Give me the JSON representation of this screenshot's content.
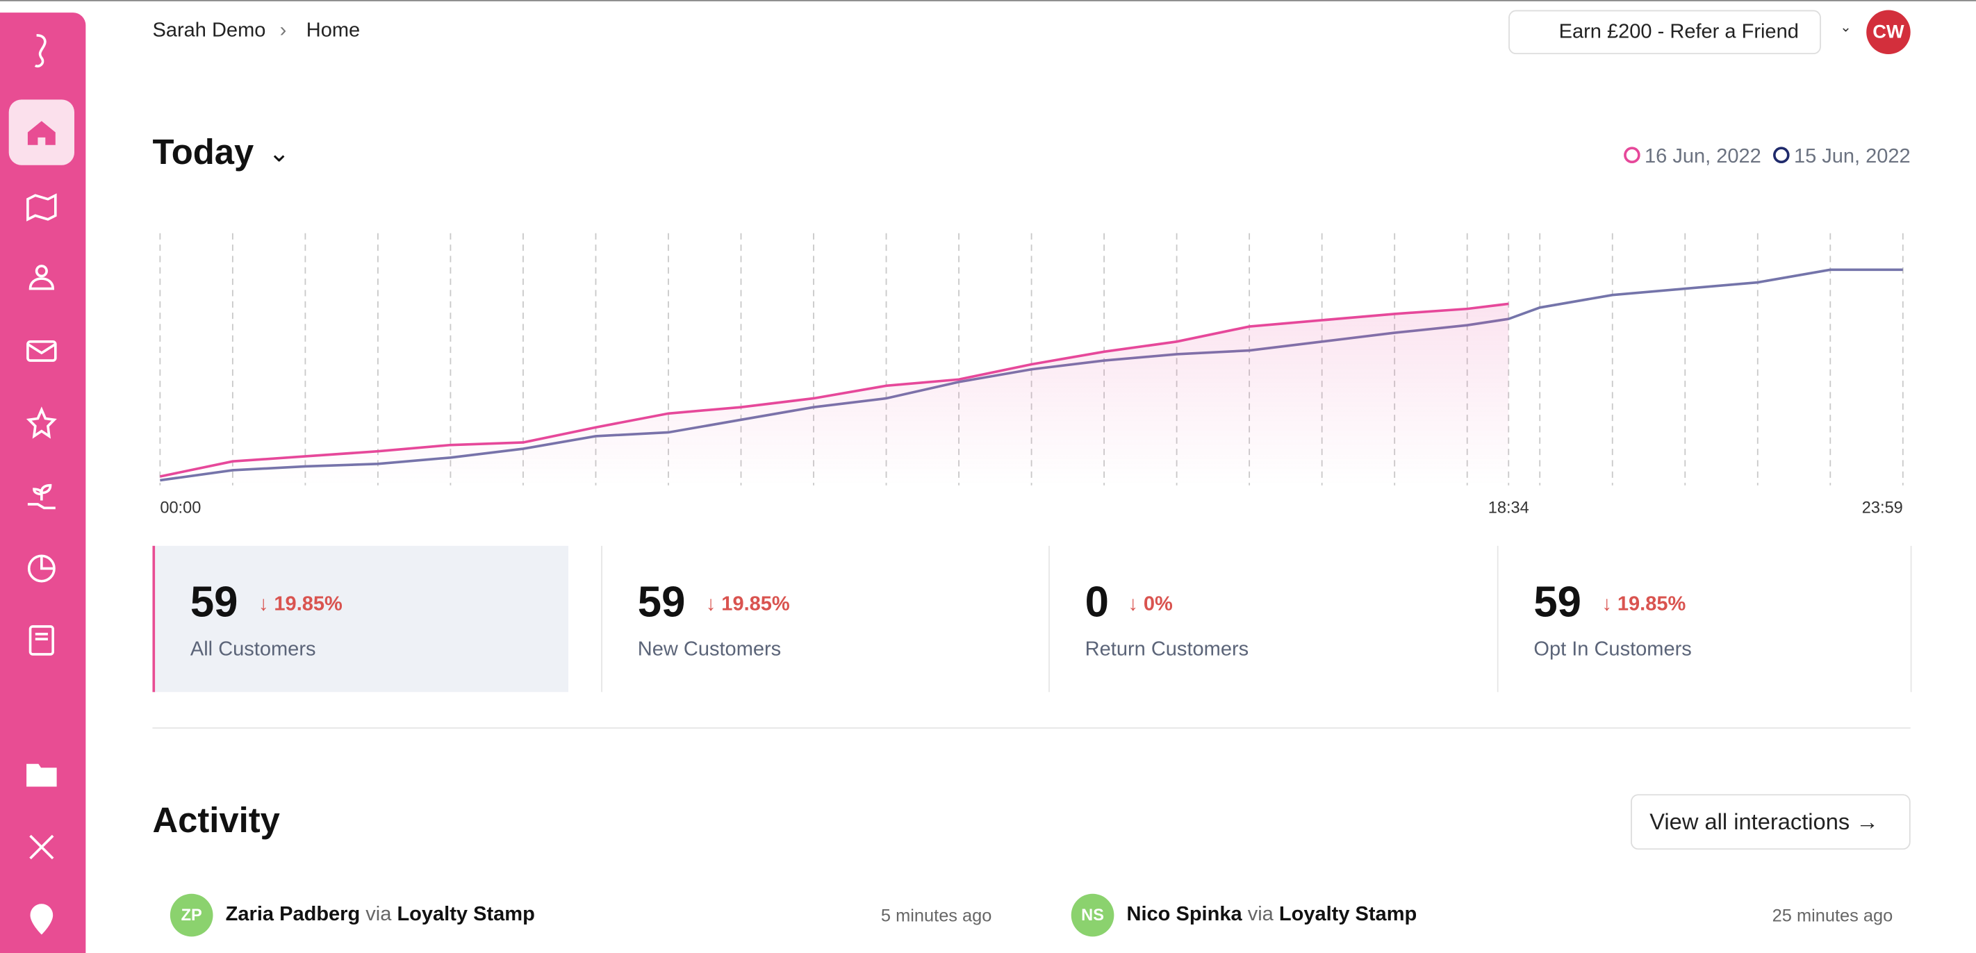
{
  "breadcrumb": [
    "Sarah Demo",
    "Home"
  ],
  "referral": "Earn £200 - Refer a Friend",
  "avatar": "CW",
  "heading": "Today",
  "chart_data": {
    "type": "line",
    "x": [
      0,
      1,
      2,
      3,
      4,
      5,
      6,
      7,
      8,
      9,
      10,
      11,
      12,
      13,
      14,
      15,
      16,
      17,
      18,
      18.57,
      19,
      20,
      21,
      22,
      23,
      24
    ],
    "xlim": [
      0,
      24
    ],
    "ylim": [
      0,
      100
    ],
    "xticks": [
      {
        "value": 0,
        "label": "00:00"
      },
      {
        "value": 18.57,
        "label": "18:34"
      },
      {
        "value": 24,
        "label": "23:59"
      }
    ],
    "series": [
      {
        "name": "16 Jun, 2022",
        "color": "#e6489a",
        "values": [
          3.5,
          9.5,
          11.5,
          13.5,
          16,
          17,
          23,
          28.5,
          31,
          34.5,
          39.5,
          42,
          48,
          53,
          57,
          63,
          65.5,
          68,
          70,
          72,
          null,
          null,
          null,
          null,
          null,
          null
        ]
      },
      {
        "name": "15 Jun, 2022",
        "color": "#7474aa",
        "legend_color": "#1f2a6b",
        "values": [
          2,
          6,
          7.5,
          8.5,
          11,
          14.5,
          19.5,
          21,
          26,
          31,
          34.5,
          41,
          46,
          49.5,
          52,
          53.5,
          57,
          60.5,
          63.5,
          66,
          70.5,
          75.5,
          78,
          80.5,
          85.5,
          85.5
        ]
      }
    ]
  },
  "stats": [
    {
      "value": 59,
      "change": "19.85%",
      "label": "All Customers"
    },
    {
      "value": 59,
      "change": "19.85%",
      "label": "New Customers"
    },
    {
      "value": 0,
      "change": "0%",
      "label": "Return Customers"
    },
    {
      "value": 59,
      "change": "19.85%",
      "label": "Opt In Customers"
    }
  ],
  "activity": {
    "title": "Activity",
    "link": "View all interactions",
    "items": [
      {
        "initials": "ZP",
        "name": "Zaria Padberg",
        "via": "via",
        "source": "Loyalty Stamp",
        "time": "5 minutes ago"
      },
      {
        "initials": "NS",
        "name": "Nico Spinka",
        "via": "via",
        "source": "Loyalty Stamp",
        "time": "25 minutes ago"
      }
    ]
  }
}
